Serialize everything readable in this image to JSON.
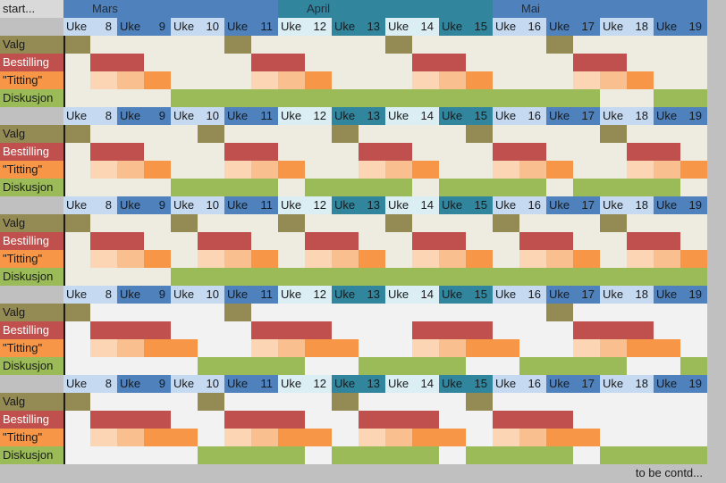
{
  "sheet": {
    "corner_label": "start...",
    "footer": "to be contd...",
    "months": [
      {
        "name": "Mars",
        "start_week": 8,
        "end_week": 11,
        "color": "#4f81bd"
      },
      {
        "name": "April",
        "start_week": 12,
        "end_week": 15,
        "color": "#31859c"
      },
      {
        "name": "Mai",
        "start_week": 16,
        "end_week": 19,
        "color": "#4f81bd"
      }
    ],
    "week_word": "Uke",
    "weeks": [
      "8",
      "9",
      "10",
      "11",
      "12",
      "13",
      "14",
      "15",
      "16",
      "17",
      "18",
      "19"
    ],
    "row_labels": {
      "valg": "Valg",
      "bestilling": "Bestilling",
      "titting": "\"Titting\"",
      "diskusjon": "Diskusjon"
    }
  },
  "colors": {
    "valg": "#948a54",
    "bestilling": "#c0504d",
    "titting_1": "#fcd5b4",
    "titting_2": "#fabf8f",
    "titting_3": "#f79646",
    "diskusjon": "#9bbb59",
    "empty_a": "#eeece1",
    "empty_b": "#f2f2f2"
  },
  "blocks": [
    {
      "week_colors": [
        "#c5d9f1",
        "#4f81bd",
        "#c5d9f1",
        "#4f81bd",
        "#daeef3",
        "#31859c",
        "#daeef3",
        "#31859c",
        "#c5d9f1",
        "#4f81bd",
        "#c5d9f1",
        "#4f81bd"
      ],
      "empty": "empty_a",
      "valg": [
        0,
        6,
        12,
        18
      ],
      "bestilling": [
        [
          1,
          2
        ],
        [
          7,
          8
        ],
        [
          13,
          14
        ],
        [
          19,
          20
        ]
      ],
      "titting": [
        [
          1,
          3
        ],
        [
          7,
          9
        ],
        [
          13,
          15
        ],
        [
          19,
          21
        ]
      ],
      "diskusjon": [
        [
          4,
          9
        ],
        [
          10,
          15
        ],
        [
          16,
          19
        ],
        [
          22,
          23
        ]
      ]
    },
    {
      "week_colors": [
        "#c5d9f1",
        "#4f81bd",
        "#c5d9f1",
        "#4f81bd",
        "#daeef3",
        "#31859c",
        "#daeef3",
        "#31859c",
        "#c5d9f1",
        "#4f81bd",
        "#c5d9f1",
        "#4f81bd"
      ],
      "empty": "empty_a",
      "valg": [
        0,
        5,
        10,
        15,
        20
      ],
      "bestilling": [
        [
          1,
          2
        ],
        [
          6,
          7
        ],
        [
          11,
          12
        ],
        [
          16,
          17
        ],
        [
          21,
          22
        ]
      ],
      "titting": [
        [
          1,
          3
        ],
        [
          6,
          8
        ],
        [
          11,
          13
        ],
        [
          16,
          18
        ],
        [
          21,
          23
        ]
      ],
      "diskusjon": [
        [
          4,
          7
        ],
        [
          9,
          12
        ],
        [
          14,
          17
        ],
        [
          19,
          22
        ]
      ]
    },
    {
      "week_colors": [
        "#c5d9f1",
        "#4f81bd",
        "#c5d9f1",
        "#4f81bd",
        "#daeef3",
        "#31859c",
        "#daeef3",
        "#31859c",
        "#c5d9f1",
        "#4f81bd",
        "#c5d9f1",
        "#4f81bd"
      ],
      "empty": "empty_a",
      "valg": [
        0,
        4,
        8,
        12,
        16,
        20
      ],
      "bestilling": [
        [
          1,
          2
        ],
        [
          5,
          6
        ],
        [
          9,
          10
        ],
        [
          13,
          14
        ],
        [
          17,
          18
        ],
        [
          21,
          22
        ]
      ],
      "titting": [
        [
          1,
          3
        ],
        [
          5,
          7
        ],
        [
          9,
          11
        ],
        [
          13,
          15
        ],
        [
          17,
          19
        ],
        [
          21,
          23
        ]
      ],
      "diskusjon": [
        [
          4,
          23
        ]
      ]
    },
    {
      "week_colors": [
        "#c5d9f1",
        "#4f81bd",
        "#c5d9f1",
        "#4f81bd",
        "#daeef3",
        "#31859c",
        "#daeef3",
        "#31859c",
        "#c5d9f1",
        "#4f81bd",
        "#c5d9f1",
        "#4f81bd"
      ],
      "empty": "empty_b",
      "valg": [
        0,
        6,
        18
      ],
      "bestilling": [
        [
          1,
          3
        ],
        [
          7,
          9
        ],
        [
          13,
          15
        ],
        [
          19,
          21
        ]
      ],
      "titting": [
        [
          1,
          4
        ],
        [
          7,
          10
        ],
        [
          13,
          16
        ],
        [
          19,
          22
        ]
      ],
      "diskusjon": [
        [
          5,
          8
        ],
        [
          11,
          14
        ],
        [
          17,
          20
        ],
        [
          23,
          23
        ]
      ]
    },
    {
      "week_colors": [
        "#c5d9f1",
        "#4f81bd",
        "#c5d9f1",
        "#4f81bd",
        "#daeef3",
        "#31859c",
        "#daeef3",
        "#31859c",
        "#c5d9f1",
        "#4f81bd",
        "#c5d9f1",
        "#4f81bd"
      ],
      "empty": "empty_b",
      "valg": [
        0,
        5,
        10,
        15
      ],
      "bestilling": [
        [
          1,
          3
        ],
        [
          6,
          8
        ],
        [
          11,
          13
        ],
        [
          16,
          18
        ]
      ],
      "titting": [
        [
          1,
          4
        ],
        [
          6,
          9
        ],
        [
          11,
          14
        ],
        [
          16,
          19
        ]
      ],
      "diskusjon": [
        [
          5,
          8
        ],
        [
          10,
          13
        ],
        [
          15,
          18
        ],
        [
          20,
          23
        ]
      ]
    }
  ]
}
